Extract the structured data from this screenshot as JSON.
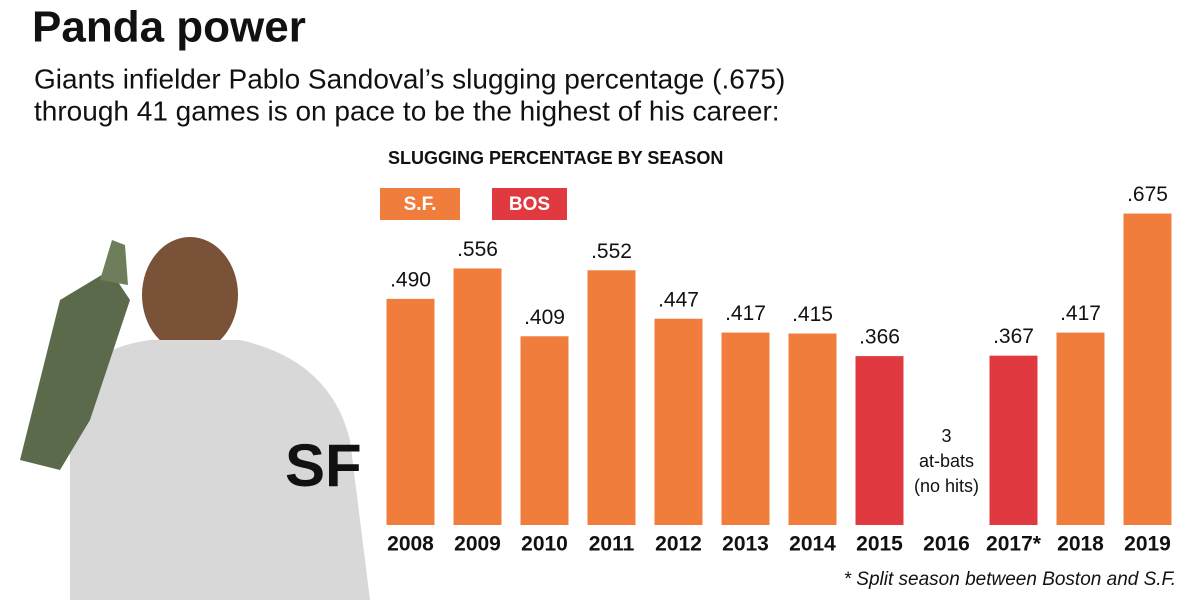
{
  "chart_data": {
    "type": "bar",
    "title": "Panda power",
    "subtitle": [
      "Giants infielder Pablo Sandoval’s slugging percentage (.675)",
      "through 41 games is on pace to be the highest of his career:"
    ],
    "chart_title": "SLUGGING PERCENTAGE BY SEASON",
    "legend": [
      {
        "name": "S.F.",
        "color": "#f07d3c"
      },
      {
        "name": "BOS",
        "color": "#e03a40"
      }
    ],
    "categories": [
      "2008",
      "2009",
      "2010",
      "2011",
      "2012",
      "2013",
      "2014",
      "2015",
      "2016",
      "2017*",
      "2018",
      "2019"
    ],
    "values": [
      0.49,
      0.556,
      0.409,
      0.552,
      0.447,
      0.417,
      0.415,
      0.366,
      null,
      0.367,
      0.417,
      0.675
    ],
    "value_labels": [
      ".490",
      ".556",
      ".409",
      ".552",
      ".447",
      ".417",
      ".415",
      ".366",
      null,
      ".367",
      ".417",
      ".675"
    ],
    "colors": [
      "#f07d3c",
      "#f07d3c",
      "#f07d3c",
      "#f07d3c",
      "#f07d3c",
      "#f07d3c",
      "#f07d3c",
      "#e03a40",
      null,
      "#e03a40",
      "#f07d3c",
      "#f07d3c"
    ],
    "annotation": {
      "category": "2016",
      "lines": [
        "3",
        "at-bats",
        "(no hits)"
      ]
    },
    "footnote": "* Split season between Boston and S.F.",
    "ylim": [
      0,
      0.7
    ]
  }
}
